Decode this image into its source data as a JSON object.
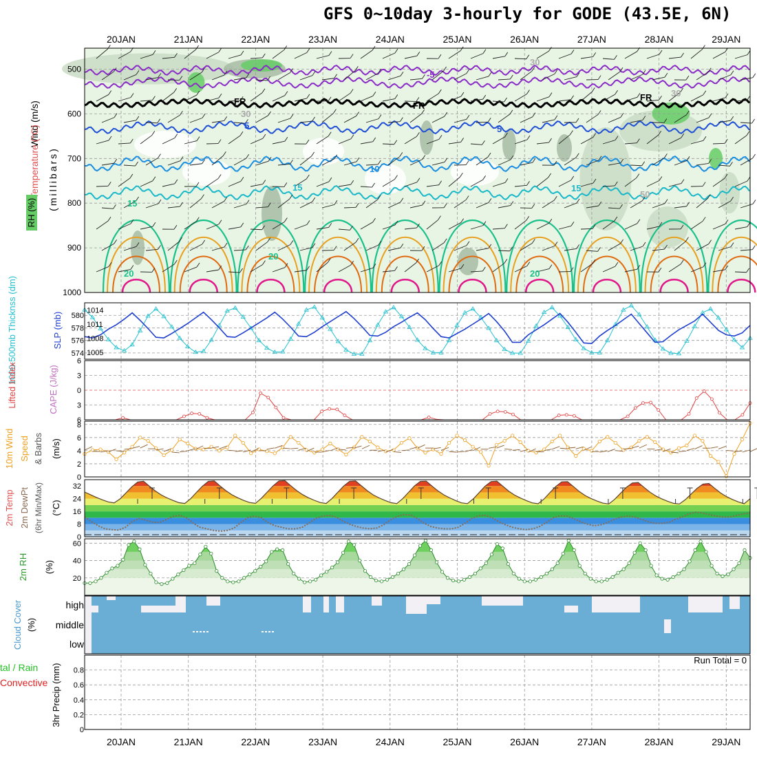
{
  "title": "GFS 0~10day 3-hourly for GODE (43.5E, 6N)",
  "dates": [
    "20JAN",
    "21JAN",
    "22JAN",
    "23JAN",
    "24JAN",
    "25JAN",
    "26JAN",
    "27JAN",
    "28JAN",
    "29JAN"
  ],
  "colors": {
    "grid": "#999999",
    "rh_fill_light": "#e8f4e4",
    "rh_fill_mid": "#c9dcc4",
    "rh_fill_dark": "#a7bba4",
    "rh_fill_green": "#66cc66",
    "fr_line": "#000000",
    "temp_purple": "#8a2bc7",
    "temp_blue": "#1f4fd6",
    "temp_midblue": "#1a8ee0",
    "temp_cyan": "#19b8c8",
    "temp_teal": "#19c08a",
    "temp_orange": "#e8a020",
    "temp_darkorange": "#e06a10",
    "temp_magenta": "#e0188a",
    "thickness": "#1f3fd0",
    "slp": "#25c0d0",
    "li": "#e04040",
    "wind_speed": "#f0a020",
    "wind_barb": "#8a5a2a",
    "rh2m": "#7ad27a",
    "cloud": "#6aaed6",
    "cloud_bg": "#f2f0f5",
    "precip_total": "#22c022",
    "precip_conv": "#e02020"
  },
  "panels": {
    "upper": {
      "ylabel_rh": "RH (%)",
      "ylabel_mb": "(millibars)",
      "ylabel_temp": "Temperature (°C)",
      "ylabel_wind": "Wind (m/s)",
      "yticks": [
        500,
        600,
        700,
        800,
        900,
        1000
      ],
      "contour_labels": [
        "FR",
        "FR",
        "FR",
        "-5",
        "5",
        "5",
        "10",
        "15",
        "15",
        "15",
        "20",
        "20",
        "20",
        "30",
        "30",
        "50",
        "30"
      ]
    },
    "thickness": {
      "ylabel_thick": "1000-500mb Thicknss (dm)",
      "ylabel_slp": "SLP (mb)",
      "left_ticks": [
        574,
        576,
        578,
        580
      ],
      "right_ticks": [
        1005,
        1008,
        1011,
        1014
      ]
    },
    "lifted": {
      "ylabel_li": "Lifted Index",
      "ylabel_cape": "CAPE (J/kg)",
      "yticks": [
        "-6",
        "-3",
        "0",
        "3",
        "6"
      ]
    },
    "wind10m": {
      "ylabel_title": "10m Wind",
      "ylabel_speed": "Speed",
      "ylabel_barbs": "& Barbs",
      "ylabel_unit": "(m/s)",
      "yticks": [
        0,
        2,
        4,
        6,
        8
      ]
    },
    "temp2m": {
      "ylabel_1": "2m Temp",
      "ylabel_2": "2m DewPt",
      "ylabel_3": "(6hr Min/Max)",
      "ylabel_unit": "(°C)",
      "yticks": [
        0,
        8,
        16,
        24,
        32
      ]
    },
    "rh2m": {
      "ylabel": "2m RH",
      "ylabel_unit": "(%)",
      "yticks": [
        20,
        40,
        60
      ]
    },
    "cloud": {
      "ylabel": "Cloud Cover",
      "ylabel_unit": "(%)",
      "levels": [
        "high",
        "middle",
        "low"
      ]
    },
    "precip": {
      "ylabel_total": "tal / Rain",
      "ylabel_conv": "Convective",
      "ylabel_main": "3hr Precip (mm)",
      "yticks": [
        "0",
        "0.2",
        "0.4",
        "0.6",
        "0.8"
      ],
      "run_total": "Run Total = 0"
    }
  },
  "chart_data": [
    {
      "type": "line",
      "name": "1000-500mb Thickness (dm)",
      "x_unit": "3-hourly steps from 19JAN 15Z",
      "ylim": [
        573,
        582
      ],
      "values": [
        576.6,
        576.4,
        576.9,
        577.8,
        578.5,
        579.4,
        580.4,
        579.2,
        577.9,
        576.5,
        576.4,
        577.1,
        577.9,
        578.7,
        579.6,
        580.5,
        579.3,
        578.0,
        576.6,
        576.5,
        577.2,
        578.0,
        578.8,
        579.6,
        580.5,
        579.4,
        578.1,
        576.7,
        576.6,
        577.3,
        578.2,
        579.0,
        579.8,
        580.6,
        579.5,
        578.2,
        576.8,
        576.7,
        577.3,
        578.2,
        578.9,
        579.7,
        580.4,
        579.3,
        577.9,
        576.6,
        576.4,
        577.1,
        577.8,
        578.6,
        579.4,
        580.3,
        579.0,
        577.5,
        575.7,
        575.7,
        576.9,
        577.7,
        578.5,
        579.4,
        580.3,
        578.9,
        577.3,
        575.6,
        575.5,
        576.7,
        577.6,
        578.4,
        579.3,
        580.2,
        578.7,
        577.2,
        575.7,
        575.8,
        576.8,
        577.7,
        578.4,
        579.1,
        580.2,
        578.9,
        577.6,
        576.9,
        576.7,
        577.2,
        578.4
      ]
    },
    {
      "type": "line",
      "name": "SLP (mb)",
      "ylim": [
        1003.5,
        1015.5
      ],
      "values": [
        1014.0,
        1012.4,
        1010.0,
        1007.7,
        1006.0,
        1005.3,
        1006.6,
        1009.6,
        1012.7,
        1014.2,
        1012.6,
        1010.4,
        1008.0,
        1006.2,
        1005.0,
        1005.2,
        1007.6,
        1010.7,
        1013.8,
        1014.4,
        1012.5,
        1010.1,
        1007.5,
        1005.9,
        1005.0,
        1005.1,
        1007.8,
        1011.0,
        1014.0,
        1014.6,
        1012.3,
        1009.9,
        1007.3,
        1005.5,
        1004.6,
        1004.6,
        1007.5,
        1010.8,
        1013.6,
        1014.5,
        1012.6,
        1010.3,
        1007.6,
        1005.8,
        1004.9,
        1004.9,
        1007.5,
        1010.7,
        1013.4,
        1014.2,
        1012.4,
        1010.1,
        1007.5,
        1005.6,
        1004.8,
        1004.8,
        1007.4,
        1010.6,
        1013.5,
        1014.5,
        1012.7,
        1010.3,
        1007.7,
        1005.8,
        1004.9,
        1004.9,
        1007.5,
        1010.9,
        1014.0,
        1014.9,
        1013.0,
        1010.4,
        1007.6,
        1005.7,
        1004.8,
        1004.7,
        1007.4,
        1010.5,
        1013.4,
        1014.2,
        1012.3,
        1009.8,
        1007.6,
        1006.0,
        1008.0
      ]
    },
    {
      "type": "line",
      "name": "Lifted Index",
      "ylim": [
        -6,
        6
      ],
      "values": [
        6,
        6,
        6,
        6,
        6,
        5.6,
        6,
        6,
        6,
        6,
        6,
        6,
        6,
        5.3,
        4.7,
        4.8,
        5.6,
        6,
        6,
        6,
        6,
        6,
        4.5,
        0.6,
        1.5,
        3.5,
        5.6,
        6,
        6,
        6,
        6,
        4.3,
        3.8,
        3.9,
        5.1,
        6,
        6,
        6,
        6,
        6,
        6,
        6,
        6,
        6,
        6,
        5.5,
        5.9,
        6,
        6,
        6,
        6,
        6,
        6,
        4.8,
        4.3,
        4.4,
        4.9,
        6,
        6,
        6,
        6,
        6,
        5.1,
        5.0,
        5.2,
        6,
        6,
        6,
        6,
        6,
        6,
        5.3,
        3.6,
        2.6,
        2.5,
        4.0,
        6,
        6,
        6,
        4.8,
        1.6,
        0.2,
        1.8,
        4.6,
        6,
        6,
        5.0,
        2.6
      ]
    },
    {
      "type": "line",
      "name": "10m Wind Speed (m/s)",
      "ylim": [
        0,
        8.5
      ],
      "values": [
        3.5,
        4.1,
        4.2,
        3.8,
        2.7,
        3.7,
        4.6,
        6.0,
        5.5,
        4.4,
        3.3,
        4.1,
        5.7,
        5.1,
        4.3,
        4.2,
        4.6,
        4.0,
        4.5,
        6.3,
        5.2,
        3.6,
        4.2,
        3.9,
        3.6,
        4.5,
        6.1,
        5.2,
        4.1,
        3.7,
        4.2,
        5.1,
        4.2,
        3.4,
        4.5,
        6.1,
        5.4,
        4.5,
        3.9,
        4.1,
        5.2,
        5.9,
        4.4,
        3.7,
        4.2,
        3.5,
        5.2,
        6.3,
        5.6,
        4.6,
        3.8,
        1.7,
        4.9,
        5.5,
        6.3,
        5.3,
        4.0,
        3.7,
        4.2,
        5.4,
        6.3,
        4.5,
        3.2,
        4.3,
        4.0,
        5.4,
        6.1,
        5.2,
        4.1,
        4.5,
        5.5,
        6.1,
        5.3,
        4.2,
        3.7,
        4.4,
        4.8,
        6.3,
        5.5,
        3.2,
        2.3,
        0.1,
        3.5,
        5.7,
        8.2
      ]
    },
    {
      "type": "area",
      "name": "2m Temperature (°C)",
      "ylim": [
        0,
        36
      ],
      "values": [
        28.2,
        26.5,
        24.8,
        23.3,
        22.0,
        21.4,
        23.8,
        27.6,
        31.5,
        34.5,
        35.0,
        31.9,
        28.9,
        26.4,
        24.5,
        22.9,
        21.5,
        21.0,
        24.0,
        28.0,
        31.9,
        34.9,
        35.2,
        32.0,
        29.0,
        26.5,
        24.6,
        22.9,
        21.6,
        21.1,
        24.2,
        28.2,
        32.1,
        35.2,
        35.4,
        32.2,
        29.1,
        26.6,
        24.6,
        23.0,
        21.6,
        21.0,
        24.1,
        28.1,
        32.0,
        35.0,
        35.2,
        32.1,
        29.0,
        26.4,
        24.5,
        22.9,
        21.5,
        20.9,
        24.0,
        28.0,
        32.0,
        34.9,
        35.1,
        31.9,
        28.9,
        26.4,
        24.5,
        22.8,
        21.4,
        20.9,
        23.9,
        27.9,
        31.9,
        34.8,
        35.1,
        31.9,
        28.8,
        26.3,
        24.4,
        22.8,
        21.4,
        20.8,
        23.8,
        27.8,
        31.7,
        34.6,
        34.8,
        31.6,
        28.5,
        26.0,
        24.1,
        22.5,
        21.2,
        20.7,
        23.6,
        27.4,
        31.2,
        33.9,
        34.2,
        31.1,
        28.1,
        25.7,
        23.9,
        22.4,
        21.1,
        20.7,
        23.4,
        27.0,
        30.6,
        33.2,
        33.6,
        30.5,
        27.6,
        25.3,
        23.5,
        22.0,
        20.8,
        24.0
      ]
    },
    {
      "type": "line",
      "name": "2m Dewpoint (°C)",
      "ylim": [
        0,
        36
      ],
      "values": [
        12.5,
        9.5,
        7.0,
        5.0,
        4.5,
        4.2,
        6.0,
        9.5,
        11.5,
        10.5,
        9.2,
        9.0,
        10.8,
        12.8,
        13.5,
        12.0,
        8.5,
        6.0,
        5.0,
        4.0,
        3.5,
        4.0,
        5.5,
        9.0,
        12.0,
        13.0,
        12.0,
        9.0,
        7.0,
        6.0,
        5.0,
        5.0,
        6.0,
        8.5,
        11.5,
        13.0,
        13.5,
        12.5,
        10.0,
        8.0,
        6.5,
        5.5,
        5.0,
        5.5,
        7.5,
        10.5,
        12.8,
        14.0,
        13.8,
        11.5,
        8.5,
        6.5,
        5.5,
        5.0,
        5.0,
        6.0,
        8.5,
        11.5,
        13.2,
        13.5,
        12.0,
        9.5,
        7.5,
        6.0,
        5.0,
        4.5,
        5.0,
        6.5,
        9.0,
        12.0,
        13.2,
        13.0,
        11.5,
        9.5,
        8.0,
        7.0,
        7.5,
        9.0,
        11.0,
        12.5,
        13.0,
        12.5,
        11.0,
        9.5,
        8.5,
        8.5,
        9.0,
        11.0,
        12.5,
        14.5,
        15.5,
        15.0,
        14.0,
        13.0,
        12.5,
        12.5,
        13.5,
        14.5,
        15.0
      ]
    },
    {
      "type": "area",
      "name": "2m RH (%)",
      "ylim": [
        0,
        65
      ],
      "values": [
        14,
        14,
        16,
        20,
        26,
        31,
        34,
        41,
        58,
        62,
        53,
        35,
        25,
        15,
        13,
        14,
        19,
        24,
        29,
        34,
        37,
        47,
        56,
        48,
        28,
        20,
        16,
        15,
        16,
        20,
        24,
        28,
        33,
        39,
        50,
        53,
        52,
        36,
        25,
        19,
        15,
        16,
        18,
        23,
        27,
        32,
        38,
        49,
        62,
        58,
        40,
        28,
        21,
        17,
        16,
        18,
        21,
        25,
        30,
        36,
        46,
        57,
        63,
        52,
        38,
        27,
        20,
        17,
        16,
        18,
        21,
        25,
        31,
        37,
        47,
        59,
        54,
        36,
        25,
        19,
        16,
        16,
        18,
        21,
        25,
        30,
        37,
        48,
        63,
        52,
        34,
        25,
        19,
        16,
        16,
        18,
        21,
        26,
        30,
        37,
        49,
        60,
        52,
        34,
        23,
        19,
        18,
        21,
        25,
        30,
        39,
        52,
        62,
        50,
        34,
        25,
        22,
        24,
        30,
        37,
        52,
        43
      ]
    },
    {
      "type": "line",
      "name": "3hr Precip (mm)",
      "ylim": [
        0,
        1.0
      ],
      "values": [
        0,
        0,
        0,
        0,
        0,
        0,
        0,
        0,
        0,
        0,
        0,
        0,
        0,
        0,
        0,
        0,
        0,
        0,
        0,
        0,
        0,
        0,
        0,
        0,
        0,
        0,
        0,
        0,
        0,
        0,
        0,
        0,
        0,
        0,
        0,
        0,
        0,
        0,
        0,
        0,
        0,
        0,
        0,
        0,
        0,
        0,
        0,
        0,
        0,
        0,
        0,
        0,
        0,
        0,
        0,
        0,
        0,
        0,
        0,
        0,
        0,
        0,
        0,
        0,
        0,
        0,
        0,
        0,
        0,
        0,
        0,
        0,
        0,
        0,
        0,
        0,
        0,
        0,
        0,
        0,
        0,
        0,
        0,
        0,
        0
      ]
    }
  ]
}
